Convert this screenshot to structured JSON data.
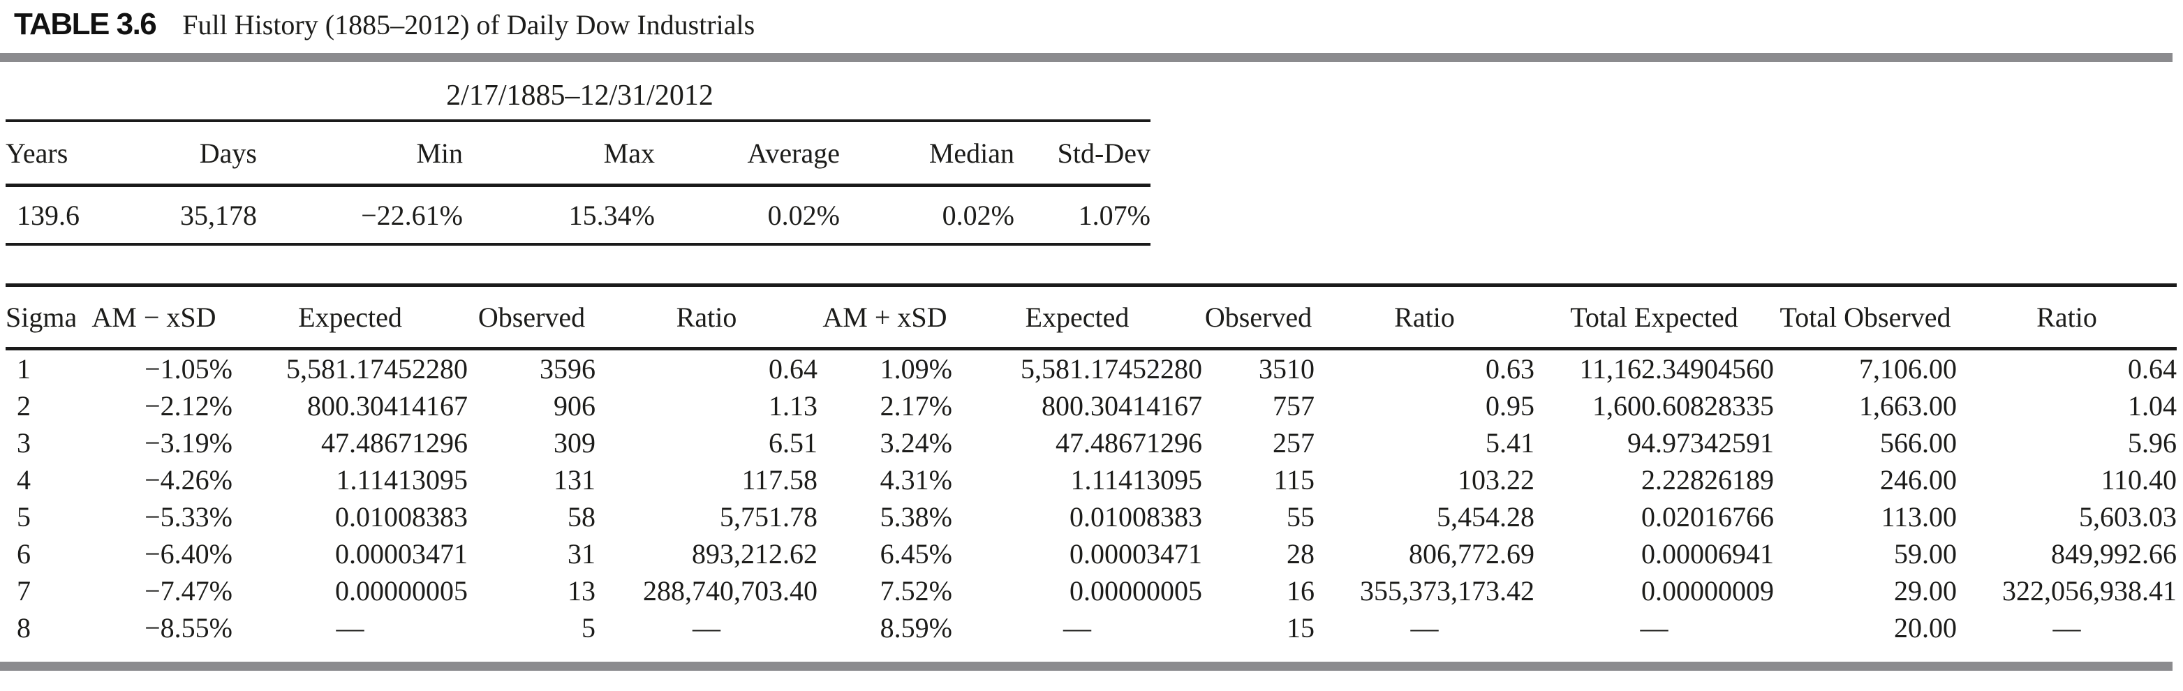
{
  "caption": {
    "label": "TABLE 3.6",
    "title": "Full History (1885–2012) of Daily Dow Industrials"
  },
  "summary": {
    "period": "2/17/1885–12/31/2012",
    "columns": [
      "Years",
      "Days",
      "Min",
      "Max",
      "Average",
      "Median",
      "Std-Dev"
    ],
    "rows": [
      [
        "139.6",
        "35,178",
        "−22.61%",
        "15.34%",
        "0.02%",
        "0.02%",
        "1.07%"
      ]
    ]
  },
  "sigma": {
    "columns": [
      "Sigma",
      "AM − xSD",
      "Expected",
      "Observed",
      "Ratio",
      "AM + xSD",
      "Expected",
      "Observed",
      "Ratio",
      "Total Expected",
      "Total Observed",
      "Ratio"
    ],
    "rows": [
      [
        "1",
        "−1.05%",
        "5,581.17452280",
        "3596",
        "0.64",
        "1.09%",
        "5,581.17452280",
        "3510",
        "0.63",
        "11,162.34904560",
        "7,106.00",
        "0.64"
      ],
      [
        "2",
        "−2.12%",
        "800.30414167",
        "906",
        "1.13",
        "2.17%",
        "800.30414167",
        "757",
        "0.95",
        "1,600.60828335",
        "1,663.00",
        "1.04"
      ],
      [
        "3",
        "−3.19%",
        "47.48671296",
        "309",
        "6.51",
        "3.24%",
        "47.48671296",
        "257",
        "5.41",
        "94.97342591",
        "566.00",
        "5.96"
      ],
      [
        "4",
        "−4.26%",
        "1.11413095",
        "131",
        "117.58",
        "4.31%",
        "1.11413095",
        "115",
        "103.22",
        "2.22826189",
        "246.00",
        "110.40"
      ],
      [
        "5",
        "−5.33%",
        "0.01008383",
        "58",
        "5,751.78",
        "5.38%",
        "0.01008383",
        "55",
        "5,454.28",
        "0.02016766",
        "113.00",
        "5,603.03"
      ],
      [
        "6",
        "−6.40%",
        "0.00003471",
        "31",
        "893,212.62",
        "6.45%",
        "0.00003471",
        "28",
        "806,772.69",
        "0.00006941",
        "59.00",
        "849,992.66"
      ],
      [
        "7",
        "−7.47%",
        "0.00000005",
        "13",
        "288,740,703.40",
        "7.52%",
        "0.00000005",
        "16",
        "355,373,173.42",
        "0.00000009",
        "29.00",
        "322,056,938.41"
      ],
      [
        "8",
        "−8.55%",
        "—",
        "5",
        "—",
        "8.59%",
        "—",
        "15",
        "—",
        "—",
        "20.00",
        "—"
      ]
    ]
  },
  "colors": {
    "rule": "#1a1a1a",
    "divider": "#8b8b8e",
    "text": "#1c1c1a"
  }
}
